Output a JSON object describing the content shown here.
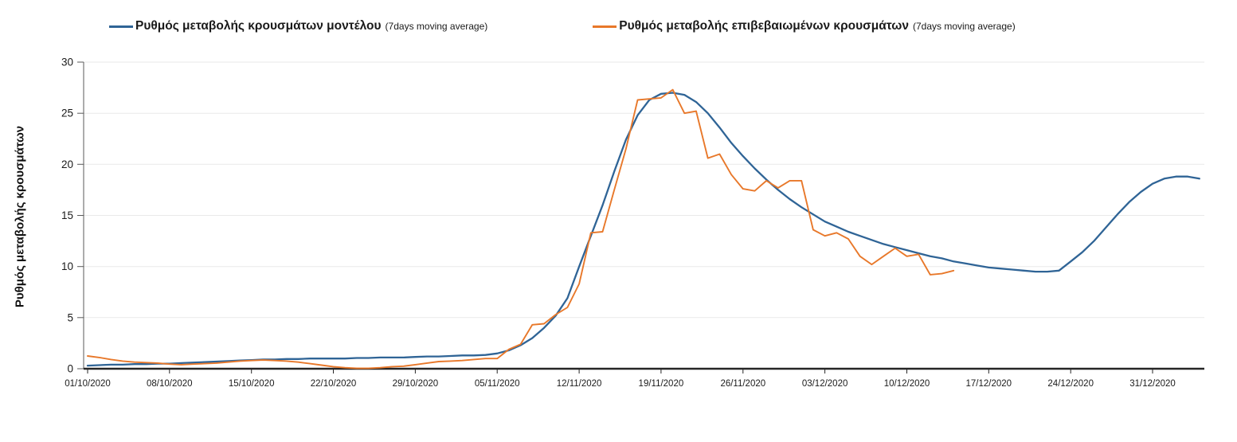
{
  "legend": {
    "items": [
      {
        "label": "Ρυθμός μεταβολής κρουσμάτων μοντέλου",
        "suffix": "(7days moving average)",
        "color": "#2f6496"
      },
      {
        "label": "Ρυθμός μεταβολής επιβεβαιωμένων κρουσμάτων",
        "suffix": "(7days moving average)",
        "color": "#e8782a"
      }
    ]
  },
  "chart_data": {
    "type": "line",
    "title": "",
    "xlabel": "",
    "ylabel": "Ρυθμός μεταβολής κρουσμάτων",
    "ylim": [
      0,
      30
    ],
    "yticks": [
      0,
      5,
      10,
      15,
      20,
      25,
      30
    ],
    "grid": "horizontal",
    "legend_position": "top",
    "x_unit": "days since 01/10/2020",
    "x_end_day": 95,
    "xticks": [
      {
        "day": 0,
        "label": "01/10/2020"
      },
      {
        "day": 7,
        "label": "08/10/2020"
      },
      {
        "day": 14,
        "label": "15/10/2020"
      },
      {
        "day": 21,
        "label": "22/10/2020"
      },
      {
        "day": 28,
        "label": "29/10/2020"
      },
      {
        "day": 35,
        "label": "05/11/2020"
      },
      {
        "day": 42,
        "label": "12/11/2020"
      },
      {
        "day": 49,
        "label": "19/11/2020"
      },
      {
        "day": 56,
        "label": "26/11/2020"
      },
      {
        "day": 63,
        "label": "03/12/2020"
      },
      {
        "day": 70,
        "label": "10/12/2020"
      },
      {
        "day": 77,
        "label": "17/12/2020"
      },
      {
        "day": 84,
        "label": "24/12/2020"
      },
      {
        "day": 91,
        "label": "31/12/2020"
      }
    ],
    "series": [
      {
        "name": "Ρυθμός μεταβολής κρουσμάτων μοντέλου (7days moving average)",
        "color": "#2f6496",
        "start_day": 0,
        "values": [
          0.3,
          0.35,
          0.4,
          0.4,
          0.45,
          0.45,
          0.5,
          0.5,
          0.55,
          0.6,
          0.65,
          0.7,
          0.75,
          0.8,
          0.85,
          0.9,
          0.9,
          0.95,
          0.95,
          1.0,
          1.0,
          1.0,
          1.0,
          1.05,
          1.05,
          1.1,
          1.1,
          1.1,
          1.15,
          1.2,
          1.2,
          1.25,
          1.3,
          1.3,
          1.35,
          1.5,
          1.8,
          2.3,
          3.0,
          4.0,
          5.2,
          6.9,
          10.0,
          13.0,
          16.0,
          19.3,
          22.4,
          24.8,
          26.3,
          26.9,
          27.0,
          26.8,
          26.1,
          25.0,
          23.6,
          22.1,
          20.8,
          19.6,
          18.5,
          17.5,
          16.6,
          15.8,
          15.1,
          14.4,
          13.9,
          13.4,
          13.0,
          12.6,
          12.2,
          11.9,
          11.6,
          11.3,
          11.0,
          10.8,
          10.5,
          10.3,
          10.1,
          9.9,
          9.8,
          9.7,
          9.6,
          9.5,
          9.5,
          9.6,
          10.5,
          11.4,
          12.5,
          13.8,
          15.1,
          16.3,
          17.3,
          18.1,
          18.6,
          18.8,
          18.8,
          18.6
        ]
      },
      {
        "name": "Ρυθμός μεταβολής επιβεβαιωμένων κρουσμάτων (7days moving average)",
        "color": "#e8782a",
        "start_day": 0,
        "values": [
          1.25,
          1.1,
          0.9,
          0.75,
          0.65,
          0.6,
          0.55,
          0.45,
          0.4,
          0.45,
          0.5,
          0.55,
          0.65,
          0.75,
          0.8,
          0.85,
          0.8,
          0.75,
          0.65,
          0.5,
          0.35,
          0.2,
          0.1,
          0.05,
          0.05,
          0.1,
          0.2,
          0.25,
          0.4,
          0.55,
          0.7,
          0.75,
          0.8,
          0.9,
          1.0,
          1.0,
          1.9,
          2.4,
          4.3,
          4.4,
          5.3,
          6.0,
          8.3,
          13.3,
          13.4,
          17.5,
          21.5,
          26.3,
          26.4,
          26.5,
          27.3,
          25.0,
          25.2,
          20.6,
          21.0,
          19.0,
          17.6,
          17.4,
          18.4,
          17.7,
          18.4,
          18.4,
          13.6,
          13.0,
          13.3,
          12.7,
          11.0,
          10.2,
          11.0,
          11.8,
          11.0,
          11.2,
          9.2,
          9.3,
          9.6
        ]
      }
    ]
  }
}
